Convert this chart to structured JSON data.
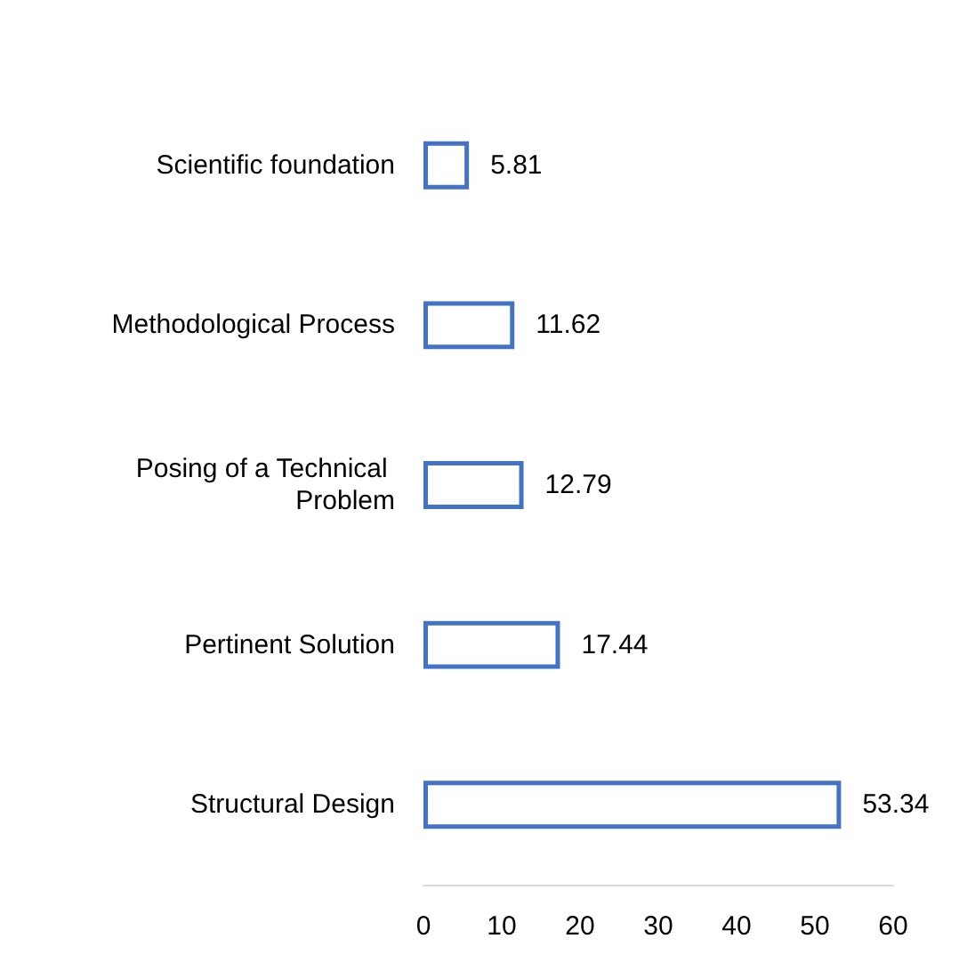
{
  "chart_data": {
    "type": "bar",
    "orientation": "horizontal",
    "categories": [
      "Scientific foundation",
      "Methodological Process",
      "Posing of a Technical Problem",
      "Pertinent Solution",
      "Structural Design"
    ],
    "values": [
      5.81,
      11.62,
      12.79,
      17.44,
      53.34
    ],
    "color": "#4472c4",
    "xlim": [
      0,
      60
    ],
    "xticks": [
      0,
      10,
      20,
      30,
      40,
      50,
      60
    ],
    "grid": false,
    "data_labels": true
  }
}
